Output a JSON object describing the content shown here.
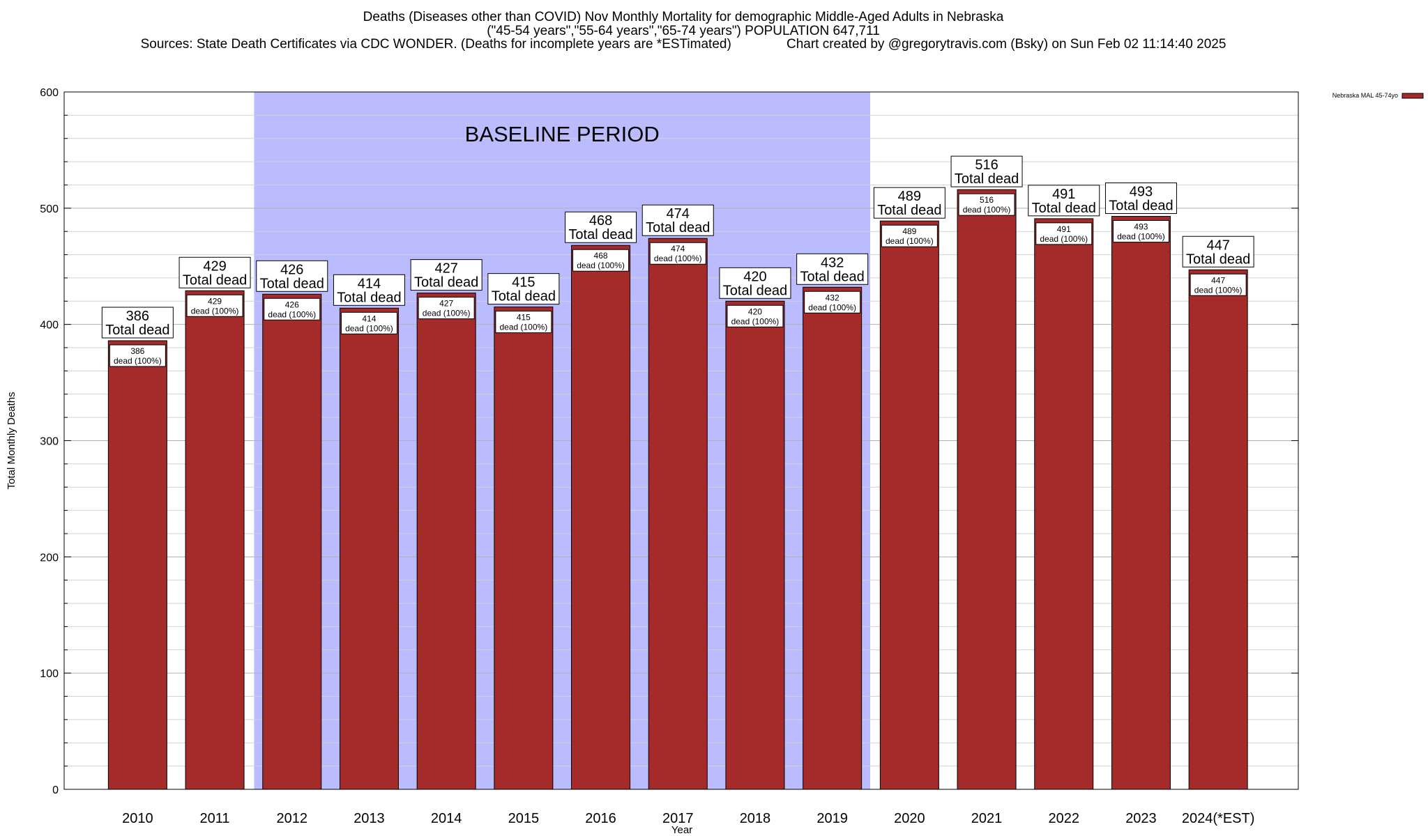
{
  "titles": {
    "line1": "Deaths (Diseases other than COVID) Nov Monthly Mortality for demographic Middle-Aged Adults in Nebraska",
    "line2": "(\"45-54 years\",\"55-64 years\",\"65-74 years\") POPULATION 647,711",
    "line3": "Sources: State Death Certificates via CDC WONDER. (Deaths for incomplete years are *ESTimated)               Chart created by @gregorytravis.com (Bsky) on Sun Feb 02 11:14:40 2025"
  },
  "chart_data": {
    "type": "bar",
    "xlabel": "Year",
    "ylabel": "Total Monthly Deaths",
    "ylim": [
      0,
      600
    ],
    "yticks": [
      0,
      100,
      200,
      300,
      400,
      500,
      600
    ],
    "grid": true,
    "legend_position": "top-right",
    "categories": [
      "2010",
      "2011",
      "2012",
      "2013",
      "2014",
      "2015",
      "2016",
      "2017",
      "2018",
      "2019",
      "2020",
      "2021",
      "2022",
      "2023",
      "2024(*EST)"
    ],
    "series": [
      {
        "name": "Nebraska MAL 45-74yo",
        "color": "#a52a2a",
        "values": [
          386,
          429,
          426,
          414,
          427,
          415,
          468,
          474,
          420,
          432,
          489,
          516,
          491,
          493,
          447
        ]
      }
    ],
    "top_label_suffix": "Total dead",
    "inner_label_suffix": "dead (100%)",
    "baseline": {
      "label": "BASELINE PERIOD",
      "start_category": "2012",
      "end_category": "2019",
      "color": "#bbbbff"
    }
  }
}
